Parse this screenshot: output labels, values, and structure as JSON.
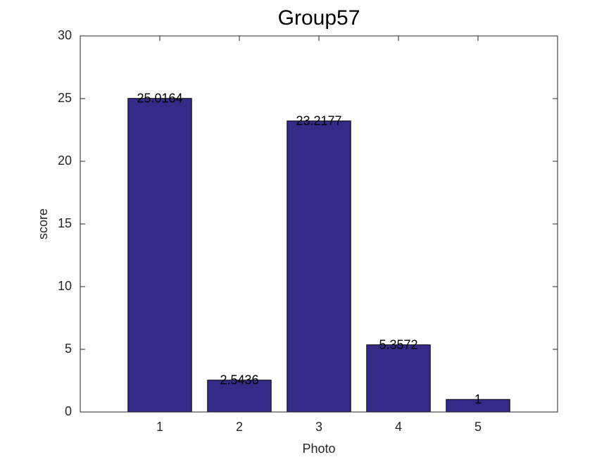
{
  "chart_data": {
    "type": "bar",
    "title": "Group57",
    "xlabel": "Photo",
    "ylabel": "score",
    "x": [
      1,
      2,
      3,
      4,
      5
    ],
    "values": [
      25.0164,
      2.5436,
      23.2177,
      5.3572,
      1
    ],
    "color": "#352a87",
    "xlim": [
      0,
      6
    ],
    "xticks": [
      1,
      2,
      3,
      4,
      5
    ],
    "ylim": [
      0,
      30
    ],
    "yticks": [
      0,
      5,
      10,
      15,
      20,
      25,
      30
    ]
  }
}
